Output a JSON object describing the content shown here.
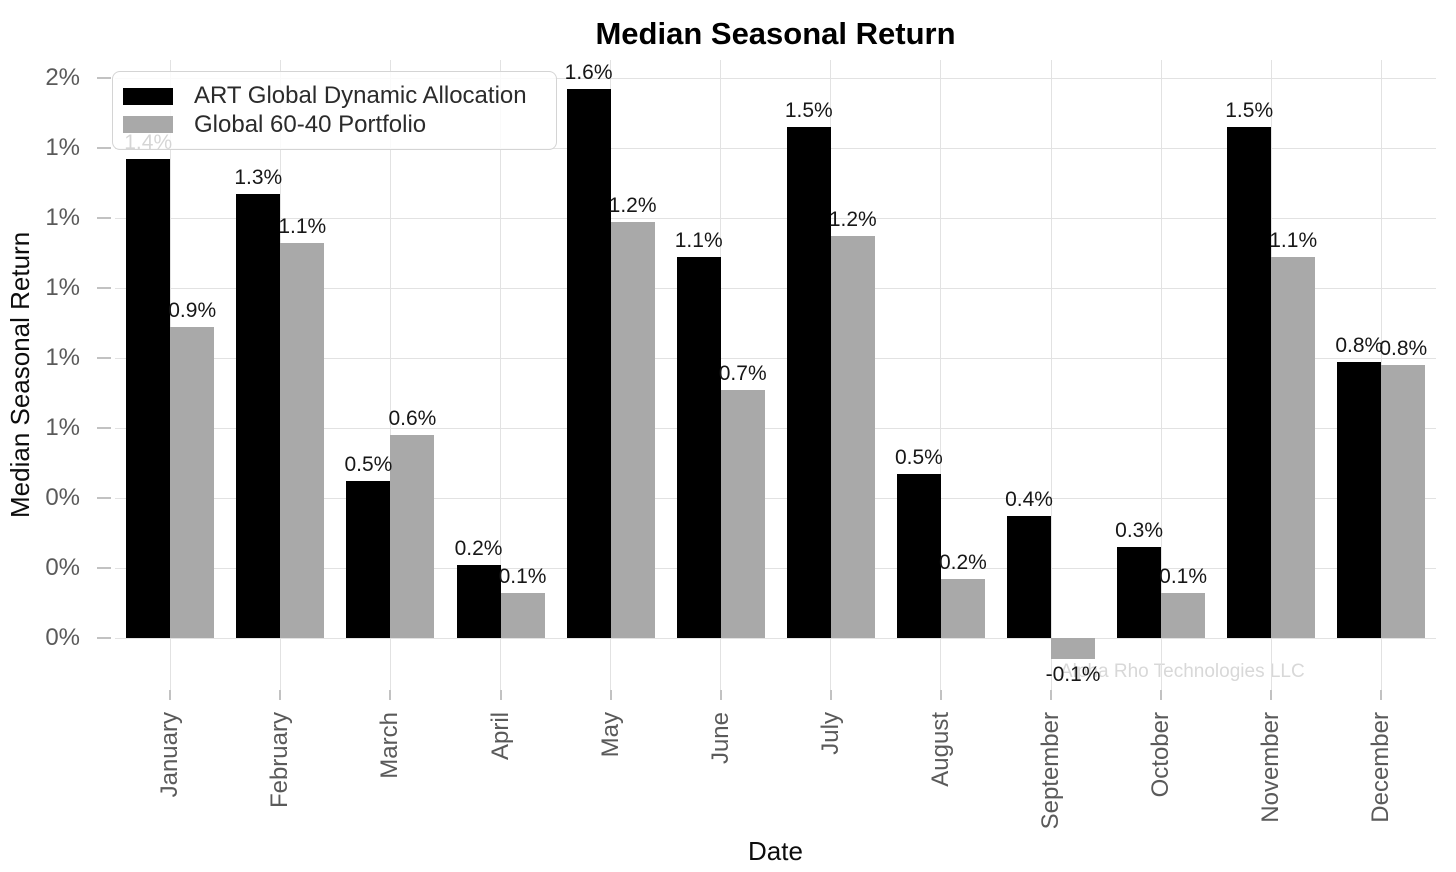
{
  "title": "Median Seasonal Return",
  "watermark": {
    "text": "Alpha Rho Technologies LLC"
  },
  "legend": {
    "items": [
      {
        "label": "ART Global Dynamic Allocation",
        "color": "#000000"
      },
      {
        "label": "Global 60-40 Portfolio",
        "color": "#a9a9a9"
      }
    ]
  },
  "chart_data": {
    "type": "bar",
    "title": "Median Seasonal Return",
    "xlabel": "Date",
    "ylabel": "Median Seasonal Return",
    "categories": [
      "January",
      "February",
      "March",
      "April",
      "May",
      "June",
      "July",
      "August",
      "September",
      "October",
      "November",
      "December"
    ],
    "series": [
      {
        "name": "ART Global Dynamic Allocation",
        "color": "#000000",
        "values": [
          1.37,
          1.27,
          0.45,
          0.21,
          1.57,
          1.09,
          1.46,
          0.47,
          0.35,
          0.26,
          1.46,
          0.79
        ],
        "value_labels": [
          "1.4%",
          "1.3%",
          "0.5%",
          "0.2%",
          "1.6%",
          "1.1%",
          "1.5%",
          "0.5%",
          "0.4%",
          "0.3%",
          "1.5%",
          "0.8%"
        ]
      },
      {
        "name": "Global 60-40 Portfolio",
        "color": "#a9a9a9",
        "values": [
          0.89,
          1.13,
          0.58,
          0.13,
          1.19,
          0.71,
          1.15,
          0.17,
          -0.06,
          0.13,
          1.09,
          0.78
        ],
        "value_labels": [
          "0.9%",
          "1.1%",
          "0.6%",
          "0.1%",
          "1.2%",
          "0.7%",
          "1.2%",
          "0.2%",
          "-0.1%",
          "0.1%",
          "1.1%",
          "0.8%"
        ]
      }
    ],
    "y_ticks": [
      {
        "value": 0.0,
        "label": "0%"
      },
      {
        "value": 0.2,
        "label": "0%"
      },
      {
        "value": 0.4,
        "label": "0%"
      },
      {
        "value": 0.6,
        "label": "1%"
      },
      {
        "value": 0.8,
        "label": "1%"
      },
      {
        "value": 1.0,
        "label": "1%"
      },
      {
        "value": 1.2,
        "label": "1%"
      },
      {
        "value": 1.4,
        "label": "1%"
      },
      {
        "value": 1.6,
        "label": "2%"
      }
    ],
    "ylim": [
      -0.15,
      1.65
    ],
    "units": "%",
    "grid": true,
    "legend_position": "upper-left"
  }
}
